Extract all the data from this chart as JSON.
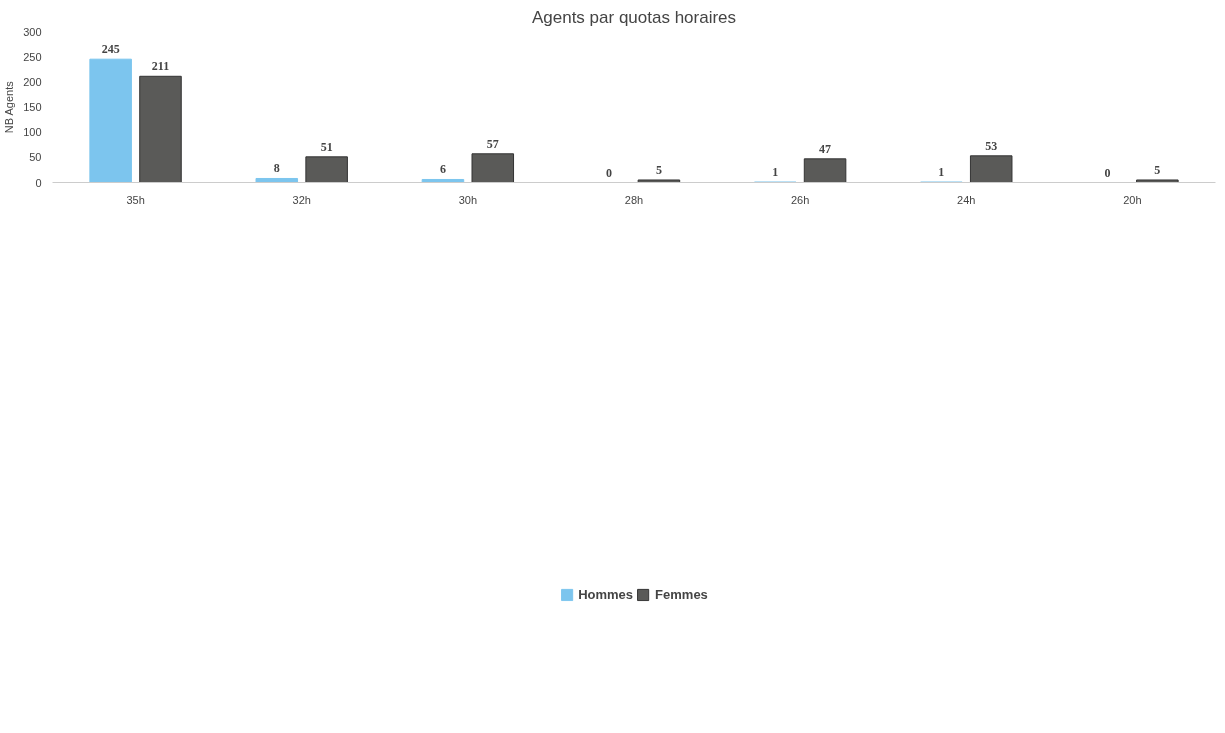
{
  "chart_data": {
    "type": "bar",
    "title": "Agents par quotas horaires",
    "ylabel": "NB Agents",
    "categories": [
      "35h",
      "32h",
      "30h",
      "28h",
      "26h",
      "24h",
      "20h"
    ],
    "series": [
      {
        "name": "Hommes",
        "color": "#7cc5ee",
        "values": [
          245,
          8,
          6,
          0,
          1,
          1,
          0
        ]
      },
      {
        "name": "Femmes",
        "color": "#5a5a58",
        "values": [
          211,
          51,
          57,
          5,
          47,
          53,
          5
        ]
      }
    ],
    "ylim": [
      0,
      300
    ],
    "yticks": [
      0,
      50,
      100,
      150,
      200,
      250,
      300
    ],
    "grid": false,
    "legend": "bottom",
    "data_labels": true
  }
}
